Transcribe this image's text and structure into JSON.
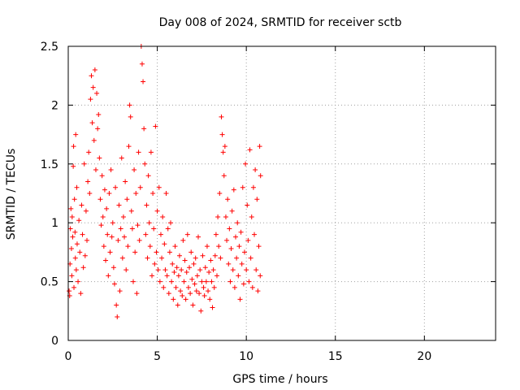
{
  "chart_data": {
    "type": "scatter",
    "title": "Day 008 of 2024, SRMTID for receiver sctb",
    "xlabel": "GPS time / hours",
    "ylabel": "SRMTID / TECUs",
    "xlim": [
      0,
      24
    ],
    "ylim": [
      0,
      2.5
    ],
    "xticks": [
      0,
      5,
      10,
      15,
      20
    ],
    "xtick_labels": [
      "0",
      "5",
      "10",
      "15",
      "20"
    ],
    "yticks": [
      0,
      0.5,
      1,
      1.5,
      2,
      2.5
    ],
    "ytick_labels": [
      "0",
      "0.5",
      "1",
      "1.5",
      "2",
      "2.5"
    ],
    "grid": true,
    "marker": "+",
    "color": "#ff0000",
    "series": [
      {
        "name": "sctb",
        "points": [
          [
            0.05,
            0.42
          ],
          [
            0.08,
            0.38
          ],
          [
            0.1,
            0.65
          ],
          [
            0.12,
            0.95
          ],
          [
            0.15,
            1.12
          ],
          [
            0.18,
            0.78
          ],
          [
            0.2,
            0.55
          ],
          [
            0.22,
            1.05
          ],
          [
            0.25,
            0.88
          ],
          [
            0.28,
            1.48
          ],
          [
            0.3,
            1.65
          ],
          [
            0.32,
            0.45
          ],
          [
            0.35,
            1.2
          ],
          [
            0.38,
            0.92
          ],
          [
            0.4,
            0.7
          ],
          [
            0.42,
            1.75
          ],
          [
            0.45,
            0.6
          ],
          [
            0.48,
            1.3
          ],
          [
            0.5,
            0.82
          ],
          [
            0.55,
            0.5
          ],
          [
            0.6,
            1.02
          ],
          [
            0.65,
            0.75
          ],
          [
            0.7,
            0.4
          ],
          [
            0.75,
            1.15
          ],
          [
            0.8,
            0.9
          ],
          [
            0.85,
            0.62
          ],
          [
            0.9,
            1.5
          ],
          [
            0.95,
            0.72
          ],
          [
            1.0,
            1.1
          ],
          [
            1.05,
            0.85
          ],
          [
            1.1,
            1.35
          ],
          [
            1.15,
            1.6
          ],
          [
            1.2,
            1.25
          ],
          [
            1.25,
            2.05
          ],
          [
            1.3,
            2.25
          ],
          [
            1.35,
            1.85
          ],
          [
            1.4,
            2.15
          ],
          [
            1.45,
            1.7
          ],
          [
            1.5,
            2.3
          ],
          [
            1.55,
            1.45
          ],
          [
            1.6,
            2.1
          ],
          [
            1.65,
            1.8
          ],
          [
            1.7,
            1.92
          ],
          [
            1.75,
            1.55
          ],
          [
            1.8,
            1.2
          ],
          [
            1.85,
            0.98
          ],
          [
            1.9,
            1.4
          ],
          [
            1.95,
            1.05
          ],
          [
            2.0,
            0.8
          ],
          [
            2.05,
            1.28
          ],
          [
            2.1,
            0.68
          ],
          [
            2.15,
            1.12
          ],
          [
            2.2,
            0.9
          ],
          [
            2.25,
            0.55
          ],
          [
            2.3,
            1.25
          ],
          [
            2.35,
            0.75
          ],
          [
            2.4,
            1.45
          ],
          [
            2.45,
            0.88
          ],
          [
            2.5,
            1.0
          ],
          [
            2.55,
            0.62
          ],
          [
            2.6,
            0.48
          ],
          [
            2.65,
            1.3
          ],
          [
            2.7,
            0.3
          ],
          [
            2.75,
            0.2
          ],
          [
            2.8,
            0.85
          ],
          [
            2.85,
            1.15
          ],
          [
            2.9,
            0.42
          ],
          [
            2.95,
            0.95
          ],
          [
            3.0,
            1.55
          ],
          [
            3.05,
            0.7
          ],
          [
            3.1,
            1.05
          ],
          [
            3.15,
            0.88
          ],
          [
            3.2,
            1.35
          ],
          [
            3.25,
            0.6
          ],
          [
            3.3,
            1.2
          ],
          [
            3.35,
            0.8
          ],
          [
            3.4,
            1.65
          ],
          [
            3.45,
            2.0
          ],
          [
            3.5,
            1.9
          ],
          [
            3.55,
            1.1
          ],
          [
            3.6,
            0.95
          ],
          [
            3.65,
            0.5
          ],
          [
            3.7,
            1.45
          ],
          [
            3.75,
            0.75
          ],
          [
            3.8,
            1.25
          ],
          [
            3.85,
            0.4
          ],
          [
            3.9,
            0.98
          ],
          [
            3.95,
            1.6
          ],
          [
            4.0,
            0.85
          ],
          [
            4.05,
            1.3
          ],
          [
            4.1,
            2.5
          ],
          [
            4.15,
            2.35
          ],
          [
            4.2,
            2.2
          ],
          [
            4.25,
            1.8
          ],
          [
            4.3,
            1.5
          ],
          [
            4.35,
            0.9
          ],
          [
            4.4,
            1.15
          ],
          [
            4.45,
            0.7
          ],
          [
            4.5,
            1.4
          ],
          [
            4.55,
            1.0
          ],
          [
            4.6,
            0.8
          ],
          [
            4.65,
            1.6
          ],
          [
            4.7,
            0.55
          ],
          [
            4.75,
            1.25
          ],
          [
            4.8,
            0.95
          ],
          [
            4.85,
            0.65
          ],
          [
            4.9,
            1.82
          ],
          [
            4.95,
            0.75
          ],
          [
            5.0,
            1.1
          ],
          [
            5.05,
            0.6
          ],
          [
            5.1,
            1.3
          ],
          [
            5.15,
            0.5
          ],
          [
            5.2,
            0.9
          ],
          [
            5.25,
            0.7
          ],
          [
            5.3,
            1.05
          ],
          [
            5.35,
            0.45
          ],
          [
            5.4,
            0.82
          ],
          [
            5.45,
            0.6
          ],
          [
            5.5,
            1.25
          ],
          [
            5.55,
            0.55
          ],
          [
            5.6,
            0.95
          ],
          [
            5.65,
            0.4
          ],
          [
            5.7,
            0.75
          ],
          [
            5.75,
            1.0
          ],
          [
            5.8,
            0.5
          ],
          [
            5.85,
            0.65
          ],
          [
            5.9,
            0.35
          ],
          [
            5.95,
            0.58
          ],
          [
            6.0,
            0.8
          ],
          [
            6.05,
            0.45
          ],
          [
            6.1,
            0.62
          ],
          [
            6.15,
            0.3
          ],
          [
            6.2,
            0.55
          ],
          [
            6.25,
            0.72
          ],
          [
            6.3,
            0.42
          ],
          [
            6.35,
            0.6
          ],
          [
            6.4,
            0.38
          ],
          [
            6.45,
            0.85
          ],
          [
            6.5,
            0.5
          ],
          [
            6.55,
            0.68
          ],
          [
            6.6,
            0.35
          ],
          [
            6.65,
            0.58
          ],
          [
            6.7,
            0.9
          ],
          [
            6.75,
            0.45
          ],
          [
            6.8,
            0.62
          ],
          [
            6.85,
            0.4
          ],
          [
            6.9,
            0.75
          ],
          [
            6.95,
            0.52
          ],
          [
            7.0,
            0.3
          ],
          [
            7.05,
            0.65
          ],
          [
            7.1,
            0.48
          ],
          [
            7.15,
            0.7
          ],
          [
            7.2,
            0.42
          ],
          [
            7.25,
            0.55
          ],
          [
            7.3,
            0.88
          ],
          [
            7.35,
            0.4
          ],
          [
            7.4,
            0.6
          ],
          [
            7.45,
            0.25
          ],
          [
            7.5,
            0.5
          ],
          [
            7.55,
            0.72
          ],
          [
            7.6,
            0.45
          ],
          [
            7.65,
            0.38
          ],
          [
            7.7,
            0.62
          ],
          [
            7.75,
            0.5
          ],
          [
            7.8,
            0.8
          ],
          [
            7.85,
            0.42
          ],
          [
            7.9,
            0.58
          ],
          [
            7.95,
            0.35
          ],
          [
            8.0,
            0.68
          ],
          [
            8.05,
            0.5
          ],
          [
            8.1,
            0.28
          ],
          [
            8.15,
            0.6
          ],
          [
            8.2,
            0.45
          ],
          [
            8.25,
            0.72
          ],
          [
            8.3,
            0.9
          ],
          [
            8.35,
            0.55
          ],
          [
            8.4,
            1.05
          ],
          [
            8.45,
            0.8
          ],
          [
            8.5,
            1.25
          ],
          [
            8.55,
            0.7
          ],
          [
            8.6,
            1.9
          ],
          [
            8.65,
            1.75
          ],
          [
            8.7,
            1.6
          ],
          [
            8.75,
            1.4
          ],
          [
            8.8,
            1.65
          ],
          [
            8.85,
            1.05
          ],
          [
            8.9,
            0.85
          ],
          [
            8.95,
            1.2
          ],
          [
            9.0,
            0.65
          ],
          [
            9.05,
            0.95
          ],
          [
            9.1,
            0.5
          ],
          [
            9.15,
            0.78
          ],
          [
            9.2,
            1.1
          ],
          [
            9.25,
            0.6
          ],
          [
            9.3,
            1.28
          ],
          [
            9.35,
            0.45
          ],
          [
            9.4,
            0.88
          ],
          [
            9.45,
            0.7
          ],
          [
            9.5,
            1.0
          ],
          [
            9.55,
            0.55
          ],
          [
            9.6,
            0.8
          ],
          [
            9.65,
            0.35
          ],
          [
            9.7,
            0.92
          ],
          [
            9.75,
            0.65
          ],
          [
            9.8,
            1.3
          ],
          [
            9.85,
            0.48
          ],
          [
            9.9,
            0.75
          ],
          [
            9.95,
            1.5
          ],
          [
            10.0,
            0.6
          ],
          [
            10.05,
            1.15
          ],
          [
            10.1,
            0.85
          ],
          [
            10.15,
            0.5
          ],
          [
            10.2,
            1.62
          ],
          [
            10.25,
            0.7
          ],
          [
            10.3,
            1.05
          ],
          [
            10.35,
            0.45
          ],
          [
            10.4,
            1.3
          ],
          [
            10.45,
            0.9
          ],
          [
            10.5,
            1.45
          ],
          [
            10.55,
            0.6
          ],
          [
            10.6,
            1.2
          ],
          [
            10.65,
            0.42
          ],
          [
            10.7,
            0.8
          ],
          [
            10.75,
            1.65
          ],
          [
            10.78,
            0.55
          ],
          [
            10.8,
            1.4
          ]
        ]
      }
    ]
  }
}
